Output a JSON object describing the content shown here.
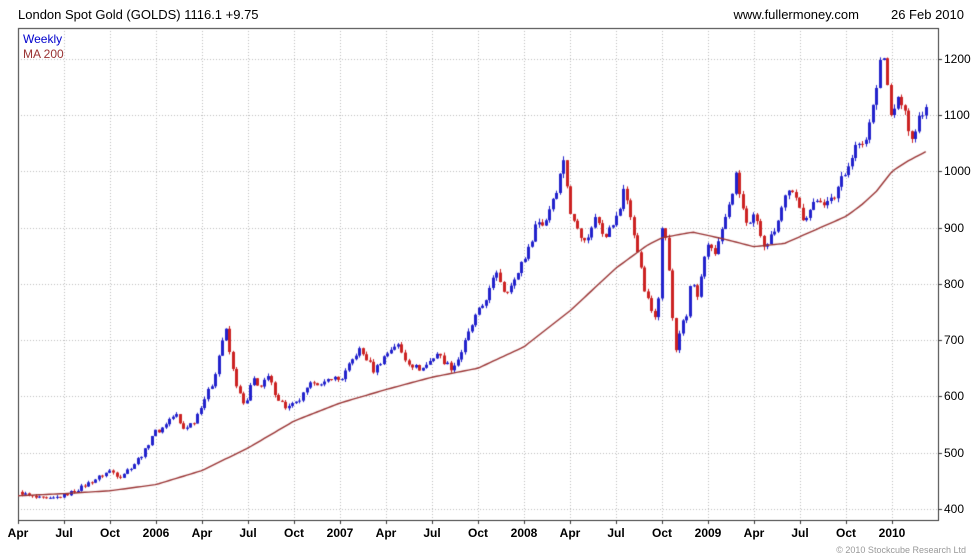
{
  "header": {
    "title": "London Spot Gold (GOLDS) 1116.1 +9.75",
    "website": "www.fullermoney.com",
    "date": "26 Feb 2010"
  },
  "footer": {
    "copyright": "© 2010 Stockcube Research Ltd"
  },
  "chart_data": {
    "type": "candlestick",
    "title": "London Spot Gold (GOLDS)",
    "timeframe": "Weekly",
    "last_price": 1116.1,
    "change": 9.75,
    "legend": [
      {
        "label": "Weekly",
        "color": "#0000cc"
      },
      {
        "label": "MA 200",
        "color": "#993333"
      }
    ],
    "x_unit": "months since Apr 2005",
    "x_range": [
      0,
      60
    ],
    "y_range": [
      380,
      1255
    ],
    "y_ticks": [
      400,
      500,
      600,
      700,
      800,
      900,
      1000,
      1100,
      1200
    ],
    "x_ticks": [
      {
        "t": 0,
        "label": "Apr"
      },
      {
        "t": 3,
        "label": "Jul"
      },
      {
        "t": 6,
        "label": "Oct"
      },
      {
        "t": 9,
        "label": "2006"
      },
      {
        "t": 12,
        "label": "Apr"
      },
      {
        "t": 15,
        "label": "Jul"
      },
      {
        "t": 18,
        "label": "Oct"
      },
      {
        "t": 21,
        "label": "2007"
      },
      {
        "t": 24,
        "label": "Apr"
      },
      {
        "t": 27,
        "label": "Jul"
      },
      {
        "t": 30,
        "label": "Oct"
      },
      {
        "t": 33,
        "label": "2008"
      },
      {
        "t": 36,
        "label": "Apr"
      },
      {
        "t": 39,
        "label": "Jul"
      },
      {
        "t": 42,
        "label": "Oct"
      },
      {
        "t": 45,
        "label": "2009"
      },
      {
        "t": 48,
        "label": "Apr"
      },
      {
        "t": 51,
        "label": "Jul"
      },
      {
        "t": 54,
        "label": "Oct"
      },
      {
        "t": 57,
        "label": "2010"
      }
    ],
    "colors": {
      "up": "#2222cc",
      "down": "#cc2222",
      "ma": "#993333",
      "grid": "#bbbbbb",
      "border": "#333333"
    },
    "bars": 258,
    "price_anchors": [
      [
        0,
        430
      ],
      [
        1,
        420
      ],
      [
        2,
        416
      ],
      [
        3,
        424
      ],
      [
        4,
        436
      ],
      [
        5,
        452
      ],
      [
        6,
        468
      ],
      [
        6.6,
        457
      ],
      [
        7.5,
        478
      ],
      [
        8.3,
        505
      ],
      [
        8.8,
        536
      ],
      [
        9.3,
        540
      ],
      [
        9.8,
        558
      ],
      [
        10.3,
        568
      ],
      [
        10.7,
        541
      ],
      [
        11.5,
        556
      ],
      [
        12,
        588
      ],
      [
        12.7,
        625
      ],
      [
        13.2,
        688
      ],
      [
        13.5,
        722
      ],
      [
        13.9,
        657
      ],
      [
        14.3,
        613
      ],
      [
        14.8,
        578
      ],
      [
        15.3,
        633
      ],
      [
        15.8,
        616
      ],
      [
        16.3,
        634
      ],
      [
        16.9,
        598
      ],
      [
        17.5,
        579
      ],
      [
        18.2,
        588
      ],
      [
        18.8,
        611
      ],
      [
        19.3,
        629
      ],
      [
        19.8,
        617
      ],
      [
        20.4,
        635
      ],
      [
        21,
        628
      ],
      [
        21.6,
        655
      ],
      [
        22.2,
        684
      ],
      [
        22.8,
        664
      ],
      [
        23.2,
        645
      ],
      [
        23.8,
        668
      ],
      [
        24.3,
        684
      ],
      [
        24.7,
        694
      ],
      [
        25.2,
        667
      ],
      [
        25.8,
        653
      ],
      [
        26.3,
        648
      ],
      [
        26.8,
        661
      ],
      [
        27.3,
        677
      ],
      [
        27.8,
        661
      ],
      [
        28.3,
        649
      ],
      [
        28.8,
        672
      ],
      [
        29.3,
        707
      ],
      [
        29.8,
        740
      ],
      [
        30.3,
        762
      ],
      [
        30.8,
        792
      ],
      [
        31.2,
        823
      ],
      [
        31.7,
        787
      ],
      [
        32.3,
        800
      ],
      [
        32.8,
        838
      ],
      [
        33.3,
        862
      ],
      [
        33.8,
        912
      ],
      [
        34.3,
        905
      ],
      [
        34.8,
        948
      ],
      [
        35.2,
        975
      ],
      [
        35.6,
        1028
      ],
      [
        36,
        922
      ],
      [
        36.5,
        905
      ],
      [
        36.9,
        872
      ],
      [
        37.4,
        898
      ],
      [
        37.7,
        927
      ],
      [
        38.2,
        885
      ],
      [
        38.7,
        902
      ],
      [
        39.2,
        928
      ],
      [
        39.5,
        978
      ],
      [
        39.9,
        918
      ],
      [
        40.4,
        860
      ],
      [
        40.8,
        792
      ],
      [
        41.3,
        752
      ],
      [
        41.7,
        742
      ],
      [
        41.95,
        898
      ],
      [
        42.3,
        880
      ],
      [
        42.6,
        760
      ],
      [
        42.9,
        682
      ],
      [
        43.2,
        722
      ],
      [
        43.6,
        742
      ],
      [
        43.9,
        812
      ],
      [
        44.3,
        772
      ],
      [
        44.7,
        838
      ],
      [
        45,
        872
      ],
      [
        45.5,
        855
      ],
      [
        45.9,
        898
      ],
      [
        46.4,
        942
      ],
      [
        46.8,
        992
      ],
      [
        47.2,
        942
      ],
      [
        47.6,
        893
      ],
      [
        48,
        922
      ],
      [
        48.4,
        890
      ],
      [
        48.7,
        868
      ],
      [
        49.2,
        888
      ],
      [
        49.7,
        928
      ],
      [
        50.2,
        972
      ],
      [
        50.7,
        948
      ],
      [
        51.2,
        917
      ],
      [
        51.7,
        934
      ],
      [
        52.2,
        953
      ],
      [
        52.7,
        942
      ],
      [
        53.2,
        952
      ],
      [
        53.7,
        992
      ],
      [
        54.2,
        1012
      ],
      [
        54.7,
        1052
      ],
      [
        55.2,
        1042
      ],
      [
        55.7,
        1108
      ],
      [
        56.1,
        1172
      ],
      [
        56.4,
        1218
      ],
      [
        56.7,
        1142
      ],
      [
        57,
        1092
      ],
      [
        57.4,
        1132
      ],
      [
        57.7,
        1112
      ],
      [
        58,
        1082
      ],
      [
        58.4,
        1058
      ],
      [
        58.7,
        1096
      ],
      [
        59.2,
        1116
      ]
    ],
    "ma200_anchors": [
      [
        0,
        423
      ],
      [
        3,
        427
      ],
      [
        6,
        432
      ],
      [
        9,
        443
      ],
      [
        12,
        468
      ],
      [
        15,
        508
      ],
      [
        18,
        556
      ],
      [
        21,
        588
      ],
      [
        24,
        612
      ],
      [
        27,
        634
      ],
      [
        30,
        650
      ],
      [
        33,
        688
      ],
      [
        36,
        752
      ],
      [
        39,
        828
      ],
      [
        41,
        868
      ],
      [
        42,
        882
      ],
      [
        44,
        892
      ],
      [
        46,
        880
      ],
      [
        48,
        866
      ],
      [
        50,
        872
      ],
      [
        52,
        896
      ],
      [
        54,
        920
      ],
      [
        55,
        940
      ],
      [
        56,
        965
      ],
      [
        57,
        1000
      ],
      [
        58,
        1018
      ],
      [
        59.2,
        1035
      ]
    ]
  }
}
